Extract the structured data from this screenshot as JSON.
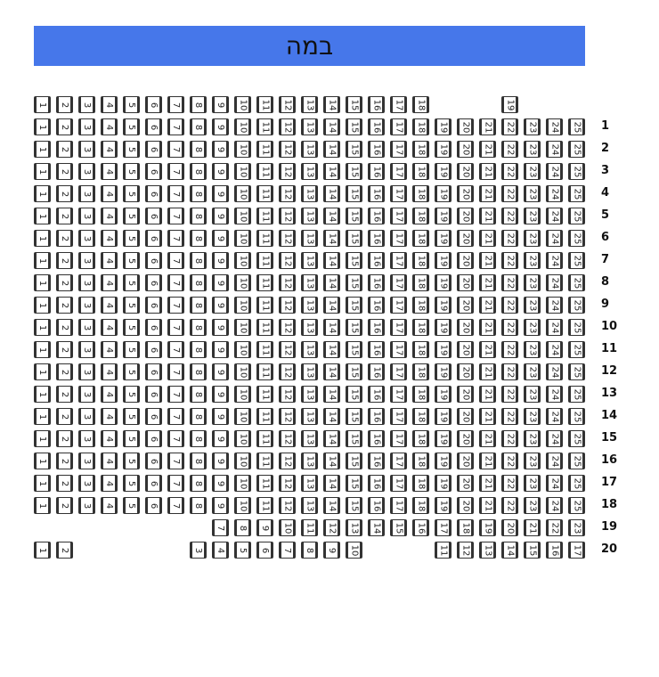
{
  "stage": {
    "label": "במה",
    "color": "#4677ea"
  },
  "rows": [
    {
      "label": "",
      "seats": [
        1,
        2,
        3,
        4,
        5,
        6,
        7,
        8,
        9,
        10,
        11,
        12,
        13,
        14,
        15,
        16,
        17,
        18,
        null,
        null,
        null,
        19
      ]
    },
    {
      "label": "1",
      "seats": [
        1,
        2,
        3,
        4,
        5,
        6,
        7,
        8,
        9,
        10,
        11,
        12,
        13,
        14,
        15,
        16,
        17,
        18,
        19,
        20,
        21,
        22,
        23,
        24,
        25
      ]
    },
    {
      "label": "2",
      "seats": [
        1,
        2,
        3,
        4,
        5,
        6,
        7,
        8,
        9,
        10,
        11,
        12,
        13,
        14,
        15,
        16,
        17,
        18,
        19,
        20,
        21,
        22,
        23,
        24,
        25
      ]
    },
    {
      "label": "3",
      "seats": [
        1,
        2,
        3,
        4,
        5,
        6,
        7,
        8,
        9,
        10,
        11,
        12,
        13,
        14,
        15,
        16,
        17,
        18,
        19,
        20,
        21,
        22,
        23,
        24,
        25
      ]
    },
    {
      "label": "4",
      "seats": [
        1,
        2,
        3,
        4,
        5,
        6,
        7,
        8,
        9,
        10,
        11,
        12,
        13,
        14,
        15,
        16,
        17,
        18,
        19,
        20,
        21,
        22,
        23,
        24,
        25
      ]
    },
    {
      "label": "5",
      "seats": [
        1,
        2,
        3,
        4,
        5,
        6,
        7,
        8,
        9,
        10,
        11,
        12,
        13,
        14,
        15,
        16,
        17,
        18,
        19,
        20,
        21,
        22,
        23,
        24,
        25
      ]
    },
    {
      "label": "6",
      "seats": [
        1,
        2,
        3,
        4,
        5,
        6,
        7,
        8,
        9,
        10,
        11,
        12,
        13,
        14,
        15,
        16,
        17,
        18,
        19,
        20,
        21,
        22,
        23,
        24,
        25
      ]
    },
    {
      "label": "7",
      "seats": [
        1,
        2,
        3,
        4,
        5,
        6,
        7,
        8,
        9,
        10,
        11,
        12,
        13,
        14,
        15,
        16,
        17,
        18,
        19,
        20,
        21,
        22,
        23,
        24,
        25
      ]
    },
    {
      "label": "8",
      "seats": [
        1,
        2,
        3,
        4,
        5,
        6,
        7,
        8,
        9,
        10,
        11,
        12,
        13,
        14,
        15,
        16,
        17,
        18,
        19,
        20,
        21,
        22,
        23,
        24,
        25
      ]
    },
    {
      "label": "9",
      "seats": [
        1,
        2,
        3,
        4,
        5,
        6,
        7,
        8,
        9,
        10,
        11,
        12,
        13,
        14,
        15,
        16,
        17,
        18,
        19,
        20,
        21,
        22,
        23,
        24,
        25
      ]
    },
    {
      "label": "10",
      "seats": [
        1,
        2,
        3,
        4,
        5,
        6,
        7,
        8,
        9,
        10,
        11,
        12,
        13,
        14,
        15,
        16,
        17,
        18,
        19,
        20,
        21,
        22,
        23,
        24,
        25
      ]
    },
    {
      "label": "11",
      "seats": [
        1,
        2,
        3,
        4,
        5,
        6,
        7,
        8,
        9,
        10,
        11,
        12,
        13,
        14,
        15,
        16,
        17,
        18,
        19,
        20,
        21,
        22,
        23,
        24,
        25
      ]
    },
    {
      "label": "12",
      "seats": [
        1,
        2,
        3,
        4,
        5,
        6,
        7,
        8,
        9,
        10,
        11,
        12,
        13,
        14,
        15,
        16,
        17,
        18,
        19,
        20,
        21,
        22,
        23,
        24,
        25
      ]
    },
    {
      "label": "13",
      "seats": [
        1,
        2,
        3,
        4,
        5,
        6,
        7,
        8,
        9,
        10,
        11,
        12,
        13,
        14,
        15,
        16,
        17,
        18,
        19,
        20,
        21,
        22,
        23,
        24,
        25
      ]
    },
    {
      "label": "14",
      "seats": [
        1,
        2,
        3,
        4,
        5,
        6,
        7,
        8,
        9,
        10,
        11,
        12,
        13,
        14,
        15,
        16,
        17,
        18,
        19,
        20,
        21,
        22,
        23,
        24,
        25
      ]
    },
    {
      "label": "15",
      "seats": [
        1,
        2,
        3,
        4,
        5,
        6,
        7,
        8,
        9,
        10,
        11,
        12,
        13,
        14,
        15,
        16,
        17,
        18,
        19,
        20,
        21,
        22,
        23,
        24,
        25
      ]
    },
    {
      "label": "16",
      "seats": [
        1,
        2,
        3,
        4,
        5,
        6,
        7,
        8,
        9,
        10,
        11,
        12,
        13,
        14,
        15,
        16,
        17,
        18,
        19,
        20,
        21,
        22,
        23,
        24,
        25
      ]
    },
    {
      "label": "17",
      "seats": [
        1,
        2,
        3,
        4,
        5,
        6,
        7,
        8,
        9,
        10,
        11,
        12,
        13,
        14,
        15,
        16,
        17,
        18,
        19,
        20,
        21,
        22,
        23,
        24,
        25
      ]
    },
    {
      "label": "18",
      "seats": [
        1,
        2,
        3,
        4,
        5,
        6,
        7,
        8,
        9,
        10,
        11,
        12,
        13,
        14,
        15,
        16,
        17,
        18,
        19,
        20,
        21,
        22,
        23,
        24,
        25
      ]
    },
    {
      "label": "19",
      "seats": [
        null,
        null,
        null,
        null,
        null,
        null,
        null,
        null,
        7,
        8,
        9,
        10,
        11,
        12,
        13,
        14,
        15,
        16,
        17,
        18,
        19,
        20,
        21,
        22,
        23
      ]
    },
    {
      "label": "20",
      "seats": [
        1,
        2,
        null,
        null,
        null,
        null,
        null,
        3,
        4,
        5,
        6,
        7,
        8,
        9,
        10,
        null,
        null,
        null,
        11,
        12,
        13,
        14,
        15,
        16,
        17
      ]
    }
  ]
}
